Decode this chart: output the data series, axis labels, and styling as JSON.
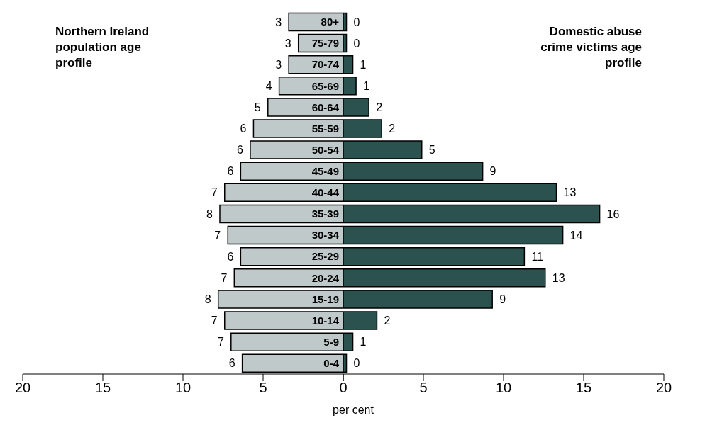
{
  "chart_data": [
    {
      "type": "bar",
      "orientation": "horizontal",
      "title": "Northern Ireland population age profile",
      "xlabel": "per cent",
      "categories": [
        "80+",
        "75-79",
        "70-74",
        "65-69",
        "60-64",
        "55-59",
        "50-54",
        "45-49",
        "40-44",
        "35-39",
        "30-34",
        "25-29",
        "20-24",
        "15-19",
        "10-14",
        "5-9",
        "0-4"
      ],
      "series": [
        {
          "color": "#c0c9c9",
          "values": [
            3.4,
            2.8,
            3.4,
            4.0,
            4.7,
            5.6,
            5.8,
            6.4,
            7.4,
            7.7,
            7.2,
            6.4,
            6.8,
            7.8,
            7.4,
            7.0,
            6.3
          ],
          "value_labels": [
            "3",
            "3",
            "3",
            "4",
            "5",
            "6",
            "6",
            "6",
            "7",
            "8",
            "7",
            "6",
            "7",
            "8",
            "7",
            "7",
            "6"
          ]
        }
      ],
      "xlim": [
        20,
        0
      ],
      "xticks": [
        20,
        15,
        10,
        5,
        0
      ],
      "grid": false
    },
    {
      "type": "bar",
      "orientation": "horizontal",
      "title": "Domestic abuse crime victims age profile",
      "categories": [
        null,
        null,
        null,
        null,
        null,
        null,
        null,
        null,
        null,
        null,
        null,
        null,
        null,
        null,
        null,
        null,
        null
      ],
      "tick_labels": "x",
      "series": [
        {
          "color": "#2b524f",
          "values": [
            0.2,
            0.2,
            0.6,
            0.8,
            1.6,
            2.4,
            4.9,
            8.7,
            13.3,
            16.0,
            13.7,
            11.3,
            12.6,
            9.3,
            2.1,
            0.6,
            0.2
          ],
          "value_labels": [
            "0",
            "0",
            "1",
            "1",
            "2",
            "2",
            "5",
            "9",
            "13",
            "16",
            "14",
            "11",
            "13",
            "9",
            "2",
            "1",
            "0"
          ]
        }
      ],
      "xlim": [
        0,
        20
      ],
      "xticks": [
        {
          "value": 0,
          "label": null
        },
        5,
        10,
        15,
        20
      ],
      "grid": false
    }
  ]
}
